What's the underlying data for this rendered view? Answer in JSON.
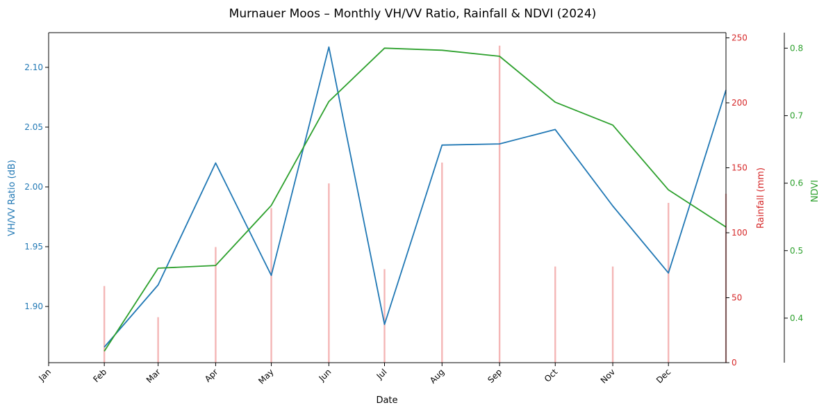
{
  "chart_data": {
    "type": "line",
    "title": "Murnauer Moos – Monthly VH/VV Ratio, Rainfall & NDVI (2024)",
    "xlabel": "Date",
    "x_ticks": [
      "Jan",
      "Feb",
      "Mar",
      "Apr",
      "May",
      "Jun",
      "Jul",
      "Aug",
      "Sep",
      "Oct",
      "Nov",
      "Dec"
    ],
    "x_dates": [
      "2024-01-31",
      "2024-02-29",
      "2024-03-31",
      "2024-04-30",
      "2024-05-31",
      "2024-06-30",
      "2024-07-31",
      "2024-08-31",
      "2024-09-30",
      "2024-10-31",
      "2024-11-30",
      "2024-12-31"
    ],
    "xlim": [
      "2024-01-01",
      "2024-12-31"
    ],
    "axes": {
      "vhvv": {
        "label": "VH/VV Ratio (dB)",
        "ylim": [
          1.853,
          2.129
        ],
        "ticks": [
          1.9,
          1.95,
          2.0,
          2.05,
          2.1
        ],
        "tick_labels": [
          "1.90",
          "1.95",
          "2.00",
          "2.05",
          "2.10"
        ],
        "color": "#1f77b4"
      },
      "rain": {
        "label": "Rainfall (mm)",
        "ylim": [
          0,
          254
        ],
        "ticks": [
          0,
          50,
          100,
          150,
          200,
          250
        ],
        "tick_labels": [
          "0",
          "50",
          "100",
          "150",
          "200",
          "250"
        ],
        "color": "#d62728"
      },
      "ndvi": {
        "label": "NDVI",
        "ylim": [
          0.334,
          0.823
        ],
        "ticks": [
          0.4,
          0.5,
          0.6,
          0.7,
          0.8
        ],
        "tick_labels": [
          "0.4",
          "0.5",
          "0.6",
          "0.7",
          "0.8"
        ],
        "color": "#2ca02c"
      }
    },
    "series": [
      {
        "axis": "vhvv",
        "kind": "line",
        "color": "#1f77b4",
        "values": [
          1.866,
          1.918,
          2.02,
          1.926,
          2.117,
          1.885,
          2.035,
          2.036,
          2.048,
          1.984,
          1.928,
          2.081
        ]
      },
      {
        "axis": "ndvi",
        "kind": "line",
        "color": "#2ca02c",
        "values": [
          0.351,
          0.474,
          0.478,
          0.567,
          0.721,
          0.8,
          0.797,
          0.788,
          0.72,
          0.686,
          0.59,
          0.535
        ]
      },
      {
        "axis": "rain",
        "kind": "bar",
        "color": "#f4b6b6",
        "values": [
          59,
          35,
          89,
          119,
          138,
          72,
          154,
          244,
          74,
          74,
          123,
          130
        ]
      }
    ],
    "grid": false,
    "legend": "none"
  }
}
